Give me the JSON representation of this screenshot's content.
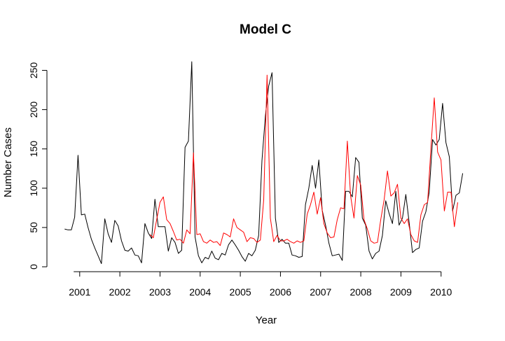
{
  "chart_data": {
    "type": "line",
    "title": "Model C",
    "xlabel": "Year",
    "ylabel": "Number Cases",
    "xlim": [
      2000.55,
      2010.58
    ],
    "ylim": [
      0,
      262
    ],
    "x_axis_range": [
      2000.85,
      2010.0
    ],
    "x_ticks": [
      2001,
      2002,
      2003,
      2004,
      2005,
      2006,
      2007,
      2008,
      2009,
      2010
    ],
    "x_tick_labels": [
      "2001",
      "2002",
      "2003",
      "2004",
      "2005",
      "2006",
      "2007",
      "2008",
      "2009",
      "2010"
    ],
    "y_ticks": [
      0,
      50,
      100,
      150,
      200,
      250
    ],
    "y_tick_labels": [
      "0",
      "50",
      "100",
      "150",
      "200",
      "250"
    ],
    "grid": false,
    "legend": false,
    "series": [
      {
        "color": "#000000",
        "x_start": 2000.625,
        "x_step": 0.0833,
        "values": [
          48,
          47,
          47,
          63,
          142,
          66,
          67,
          50,
          35,
          24,
          14,
          4,
          61,
          42,
          31,
          59,
          52,
          33,
          21,
          20,
          24,
          15,
          14,
          5,
          55,
          43,
          36,
          86,
          51,
          51,
          51,
          20,
          37,
          31,
          17,
          21,
          152,
          160,
          261,
          38,
          14,
          5,
          12,
          10,
          20,
          11,
          9,
          17,
          15,
          28,
          34,
          28,
          21,
          13,
          7,
          17,
          14,
          21,
          40,
          135,
          191,
          230,
          247,
          62,
          31,
          35,
          30,
          30,
          15,
          14,
          12,
          13,
          79,
          100,
          129,
          100,
          136,
          72,
          53,
          30,
          14,
          15,
          16,
          8,
          96,
          96,
          89,
          139,
          133,
          62,
          53,
          20,
          10,
          17,
          20,
          40,
          84,
          68,
          55,
          96,
          53,
          62,
          92,
          56,
          18,
          22,
          24,
          58,
          70,
          95,
          162,
          155,
          162,
          208,
          158,
          140,
          71,
          91,
          94,
          119
        ]
      },
      {
        "color": "#ff0000",
        "x_start": 2002.75,
        "x_step": 0.0833,
        "values": [
          41,
          37,
          60,
          82,
          89,
          60,
          55,
          45,
          34,
          35,
          30,
          47,
          42,
          145,
          41,
          42,
          32,
          30,
          34,
          31,
          32,
          27,
          43,
          41,
          38,
          61,
          50,
          47,
          44,
          32,
          37,
          36,
          31,
          34,
          85,
          244,
          62,
          32,
          40,
          33,
          33,
          35,
          32,
          30,
          33,
          31,
          33,
          67,
          79,
          95,
          67,
          88,
          55,
          43,
          37,
          38,
          60,
          75,
          74,
          160,
          90,
          62,
          116,
          104,
          60,
          48,
          33,
          30,
          31,
          60,
          85,
          122,
          90,
          94,
          105,
          62,
          55,
          61,
          41,
          33,
          31,
          66,
          79,
          82,
          152,
          215,
          146,
          136,
          71,
          95,
          95,
          51,
          82
        ]
      }
    ]
  }
}
